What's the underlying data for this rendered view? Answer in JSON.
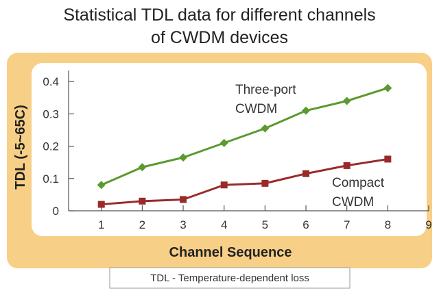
{
  "chart_data": {
    "type": "line",
    "title": "Statistical TDL data for different channels of CWDM devices",
    "title_lines": [
      "Statistical TDL data for different channels",
      "of CWDM devices"
    ],
    "xlabel": "Channel Sequence",
    "ylabel": "TDL (-5~65C)",
    "x_ticks": [
      "1",
      "2",
      "3",
      "4",
      "5",
      "6",
      "7",
      "8",
      "9"
    ],
    "y_ticks": [
      "0",
      "0.1",
      "0.2",
      "0.3",
      "0.4"
    ],
    "xlim": [
      0.2,
      9
    ],
    "ylim": [
      0,
      0.43
    ],
    "grid": false,
    "legend": "none",
    "series": [
      {
        "name": "Three-port CWDM",
        "label_lines": [
          "Three-port",
          "CWDM"
        ],
        "color": "#5a9a2e",
        "marker": "diamond",
        "x": [
          1,
          2,
          3,
          4,
          5,
          6,
          7,
          8
        ],
        "values": [
          0.08,
          0.135,
          0.165,
          0.21,
          0.255,
          0.31,
          0.34,
          0.38
        ]
      },
      {
        "name": "Compact CWDM",
        "label_lines": [
          "Compact",
          "CWDM"
        ],
        "color": "#9a2a2a",
        "marker": "square",
        "x": [
          1,
          2,
          3,
          4,
          5,
          6,
          7,
          8
        ],
        "values": [
          0.02,
          0.03,
          0.035,
          0.08,
          0.085,
          0.115,
          0.14,
          0.16
        ]
      }
    ],
    "footnote": "TDL - Temperature-dependent loss",
    "colors": {
      "panel_border": "#f7cf86",
      "panel_fill": "#ffffff",
      "axis": "#555555"
    }
  }
}
